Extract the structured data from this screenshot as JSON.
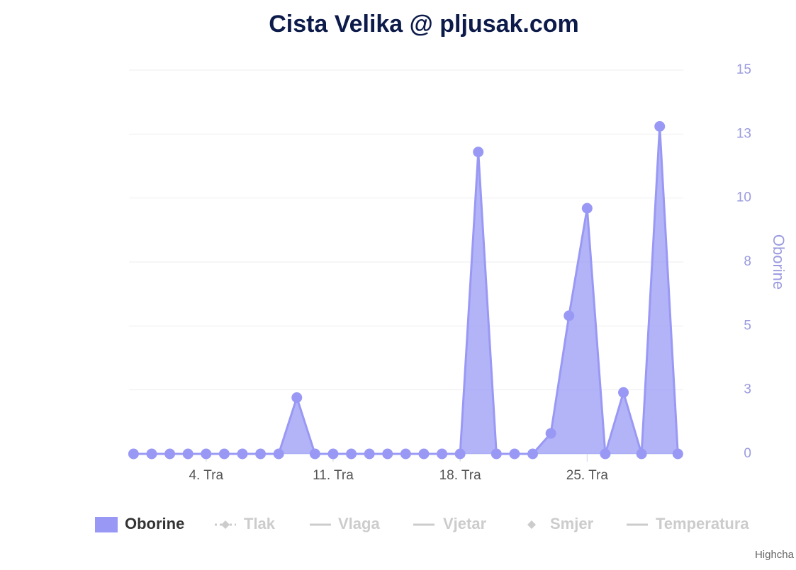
{
  "chart_data": {
    "type": "area",
    "title": "Cista Velika @ pljusak.com",
    "x": [
      0,
      1,
      2,
      3,
      4,
      5,
      6,
      7,
      8,
      9,
      10,
      11,
      12,
      13,
      14,
      15,
      16,
      17,
      18,
      19,
      20,
      21,
      22,
      23,
      24,
      25,
      26,
      27,
      28,
      29,
      30
    ],
    "series": [
      {
        "name": "Oborine",
        "color": "#9999f5",
        "values": [
          0,
          0,
          0,
          0,
          0,
          0,
          0,
          0,
          0,
          2.2,
          0,
          0,
          0,
          0,
          0,
          0,
          0,
          0,
          0,
          11.8,
          0,
          0,
          0,
          0.8,
          5.4,
          9.6,
          0,
          2.4,
          0,
          12.8,
          0
        ]
      }
    ],
    "hidden_series": [
      {
        "name": "Tlak",
        "symbol": "line-diamond"
      },
      {
        "name": "Vlaga",
        "symbol": "line"
      },
      {
        "name": "Vjetar",
        "symbol": "line"
      },
      {
        "name": "Smjer",
        "symbol": "diamond"
      },
      {
        "name": "Temperatura",
        "symbol": "line"
      }
    ],
    "xlim": [
      -0.25,
      30.3
    ],
    "xticks": [
      {
        "value": 4,
        "label": "4. Tra"
      },
      {
        "value": 11,
        "label": "11. Tra"
      },
      {
        "value": 18,
        "label": "18. Tra"
      },
      {
        "value": 25,
        "label": "25. Tra"
      }
    ],
    "ylim": [
      0,
      15
    ],
    "yticks": [
      0,
      {
        "value": 2.5,
        "label": "3"
      },
      5,
      {
        "value": 7.5,
        "label": "8"
      },
      10,
      {
        "value": 12.5,
        "label": "13"
      },
      15
    ],
    "y_label": "Oborine",
    "y_axis_side": "right",
    "grid": true,
    "credits": "Highcha"
  }
}
